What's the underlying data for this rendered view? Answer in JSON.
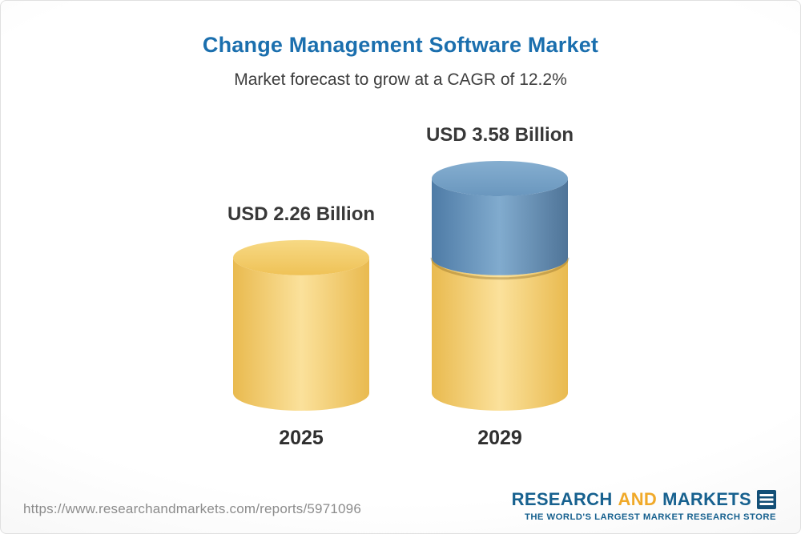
{
  "header": {
    "title": "Change Management Software Market",
    "subtitle": "Market forecast to grow at a CAGR of 12.2%"
  },
  "chart_data": {
    "type": "bar",
    "title": "Change Management Software Market",
    "subtitle": "Market forecast to grow at a CAGR of 12.2%",
    "unit": "USD Billion",
    "cagr": "12.2%",
    "categories": [
      "2025",
      "2029"
    ],
    "values": [
      2.26,
      3.58
    ],
    "value_labels": [
      "USD 2.26 Billion",
      "USD 3.58 Billion"
    ],
    "ylim": [
      0,
      3.58
    ],
    "legend_position": "none",
    "grid": false,
    "colors": {
      "yellow_body": [
        "#E9BA4F",
        "#FBE19B",
        "#E9BA4F"
      ],
      "yellow_top": [
        "#F7D984",
        "#EFC257"
      ],
      "blue_body": [
        "#4E7BA6",
        "#81ABCE",
        "#4F7498"
      ],
      "blue_top": [
        "#85AED0",
        "#6A97BE"
      ],
      "seam_shadow": "rgba(130,95,25,0.35)"
    }
  },
  "footer": {
    "url": "https://www.researchandmarkets.com/reports/5971096",
    "logo": {
      "research": "RESEARCH",
      "and": "AND",
      "markets": "MARKETS",
      "tagline": "THE WORLD'S LARGEST MARKET RESEARCH STORE"
    }
  },
  "colors": {
    "title": "#1B6FAE",
    "logo_blue": "#17618F",
    "logo_orange": "#F0A929",
    "flag_blue": "#134F77"
  }
}
